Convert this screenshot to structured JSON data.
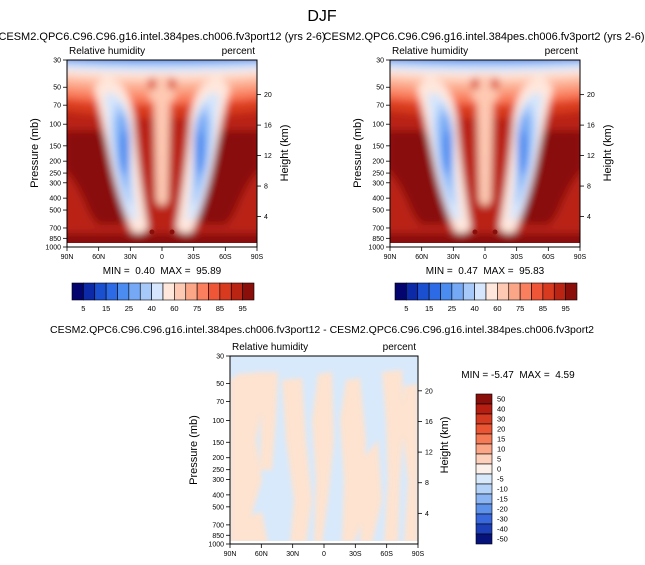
{
  "figure": {
    "title": "DJF"
  },
  "diff_title": "CESM2.QPC6.C96.C96.g16.intel.384pes.ch006.fv3port12 - CESM2.QPC6.C96.C96.g16.intel.384pes.ch006.fv3port2",
  "chart_data": [
    {
      "type": "heatmap",
      "title": "CESM2.QPC6.C96.C96.g16.intel.384pes.ch006.fv3port12 (yrs 2-6)",
      "left_subtitle": "Relative humidity",
      "right_subtitle": "percent",
      "ylabel": "Pressure (mb)",
      "y2label": "Height (km)",
      "x_ticks": [
        "90N",
        "60N",
        "30N",
        "0",
        "30S",
        "60S",
        "90S"
      ],
      "pressure_ticks": [
        "30",
        "50",
        "70",
        "100",
        "150",
        "200",
        "250",
        "300",
        "400",
        "500",
        "700",
        "850",
        "1000"
      ],
      "height_ticks": [
        "20",
        "16",
        "12",
        "8",
        "4"
      ],
      "min_max": "MIN =  0.40  MAX =  95.89",
      "levels": [
        "5",
        "10",
        "15",
        "20",
        "25",
        "30",
        "40",
        "50",
        "60",
        "65",
        "70",
        "75",
        "80",
        "85",
        "90",
        "95"
      ],
      "colorbar_labels": [
        "5",
        "15",
        "25",
        "40",
        "60",
        "75",
        "85",
        "95"
      ]
    },
    {
      "type": "heatmap",
      "title": "CESM2.QPC6.C96.C96.g16.intel.384pes.ch006.fv3port2 (yrs 2-6)",
      "left_subtitle": "Relative humidity",
      "right_subtitle": "percent",
      "ylabel": "Pressure (mb)",
      "y2label": "Height (km)",
      "x_ticks": [
        "90N",
        "60N",
        "30N",
        "0",
        "30S",
        "60S",
        "90S"
      ],
      "pressure_ticks": [
        "30",
        "50",
        "70",
        "100",
        "150",
        "200",
        "250",
        "300",
        "400",
        "500",
        "700",
        "850",
        "1000"
      ],
      "height_ticks": [
        "20",
        "16",
        "12",
        "8",
        "4"
      ],
      "min_max": "MIN =  0.47  MAX =  95.83",
      "levels": [
        "5",
        "10",
        "15",
        "20",
        "25",
        "30",
        "40",
        "50",
        "60",
        "65",
        "70",
        "75",
        "80",
        "85",
        "90",
        "95"
      ],
      "colorbar_labels": [
        "5",
        "15",
        "25",
        "40",
        "60",
        "75",
        "85",
        "95"
      ]
    },
    {
      "type": "heatmap",
      "left_subtitle": "Relative humidity",
      "right_subtitle": "percent",
      "ylabel": "Pressure (mb)",
      "y2label": "Height (km)",
      "x_ticks": [
        "90N",
        "60N",
        "30N",
        "0",
        "30S",
        "60S",
        "90S"
      ],
      "pressure_ticks": [
        "30",
        "50",
        "70",
        "100",
        "150",
        "200",
        "250",
        "300",
        "400",
        "500",
        "700",
        "850",
        "1000"
      ],
      "height_ticks": [
        "20",
        "16",
        "12",
        "8",
        "4"
      ],
      "min_max": "MIN = -5.47  MAX =  4.59",
      "levels": [
        "50",
        "40",
        "30",
        "20",
        "15",
        "10",
        "5",
        "0",
        "-5",
        "-10",
        "-15",
        "-20",
        "-30",
        "-40",
        "-50"
      ]
    }
  ],
  "colors": {
    "abs_scale": [
      "#04046e",
      "#0c29a8",
      "#1a4fd0",
      "#2d6be6",
      "#4b8cf0",
      "#75a9f5",
      "#a6c9f9",
      "#d6e6fc",
      "#ffe7dc",
      "#fec9b2",
      "#fca688",
      "#fa7f5e",
      "#ef5638",
      "#d83a1f",
      "#ba2412",
      "#8a0f0b"
    ],
    "diff_scale": [
      "#8a0f0b",
      "#b51e10",
      "#d43a1f",
      "#ea5634",
      "#f57b56",
      "#fca688",
      "#fdd0bb",
      "#fbf1ea",
      "#d7e9fb",
      "#b4d2f7",
      "#8bb5f2",
      "#5e91ea",
      "#3868dc",
      "#1c3fb8",
      "#06137b"
    ],
    "diff_pos": "#fde3d0",
    "diff_neg": "#d8e9fb"
  }
}
